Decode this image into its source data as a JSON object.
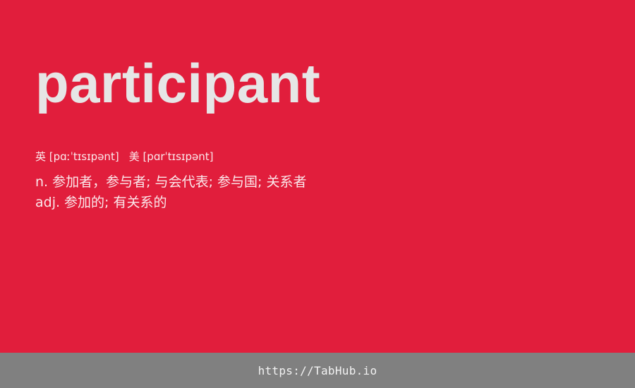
{
  "card": {
    "word": "participant",
    "phonetics": {
      "uk": "英 [pɑːˈtɪsɪpənt]",
      "us": "美 [pɑrˈtɪsɪpənt]"
    },
    "definitions": [
      "n. 参加者，参与者; 与会代表; 参与国; 关系者",
      "adj. 参加的; 有关系的"
    ]
  },
  "footer": {
    "link": "https://TabHub.io"
  },
  "colors": {
    "background": "#e11e3c",
    "word": "#e6e6e6",
    "footer": "#808080"
  }
}
